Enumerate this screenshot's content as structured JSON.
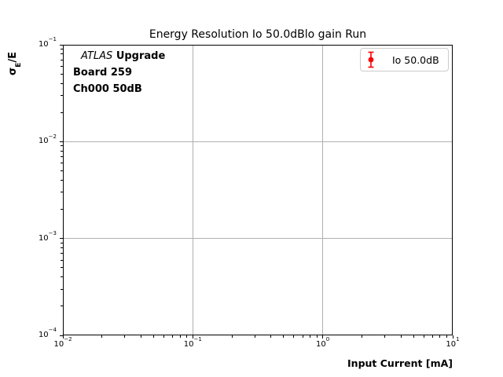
{
  "chart_data": {
    "type": "scatter",
    "title": "Energy Resolution Io 50.0dBlo gain Run",
    "xlabel": "Input Current [mA]",
    "ylabel": "σ_E/E",
    "xscale": "log",
    "yscale": "log",
    "xlim": [
      0.01,
      10
    ],
    "ylim": [
      0.0001,
      0.1
    ],
    "x_tick_exponents": [
      -2,
      -1,
      0,
      1
    ],
    "y_tick_exponents": [
      -1,
      -2,
      -3,
      -4
    ],
    "x_tick_labels": [
      "10⁻²",
      "10⁻¹",
      "10⁰",
      "10¹"
    ],
    "y_tick_labels": [
      "10⁻¹",
      "10⁻²",
      "10⁻³",
      "10⁻⁴"
    ],
    "grid": true,
    "legend_position": "upper right",
    "series": [
      {
        "name": "Io 50.0dB",
        "color": "#ff0000",
        "marker": "circle-with-errorbar",
        "x": [],
        "y": []
      }
    ]
  },
  "axes": {
    "ylabel_sigma": "σ",
    "ylabel_sub": "E",
    "ylabel_rest": "/E"
  },
  "annotation": {
    "line1_italic": "ATLAS",
    "line1_bold": "Upgrade",
    "line2": "Board 259",
    "line3": "Ch000 50dB"
  },
  "colors": {
    "grid": "#b0b0b0",
    "axis": "#000000",
    "series_red": "#ff0000",
    "legend_border": "#cccccc",
    "background": "#ffffff"
  }
}
